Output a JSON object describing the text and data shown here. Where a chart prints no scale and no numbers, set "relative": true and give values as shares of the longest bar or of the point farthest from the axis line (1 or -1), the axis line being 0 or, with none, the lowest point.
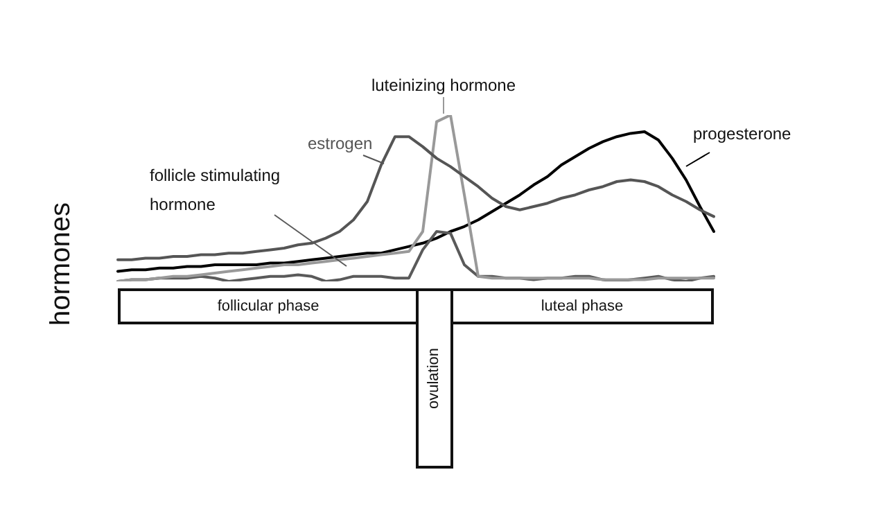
{
  "chart_data": {
    "type": "line",
    "relative": true,
    "ylabel": "hormones",
    "legend": false,
    "marker": "none",
    "categories": [
      null,
      null,
      null,
      null,
      null,
      null,
      null,
      null,
      null,
      null,
      null,
      null,
      null,
      null,
      null,
      null,
      null,
      null,
      null,
      null,
      null,
      null,
      null,
      null,
      null,
      null,
      null,
      null,
      null,
      null,
      null,
      null,
      null,
      null,
      null,
      null,
      null,
      null,
      null,
      null,
      null,
      null,
      null,
      null
    ],
    "series": [
      {
        "name": "estrogen",
        "color": "#555555",
        "values": [
          0.13,
          0.13,
          0.14,
          0.14,
          0.15,
          0.15,
          0.16,
          0.16,
          0.17,
          0.17,
          0.18,
          0.19,
          0.2,
          0.22,
          0.23,
          0.26,
          0.3,
          0.37,
          0.48,
          0.7,
          0.87,
          0.87,
          0.81,
          0.74,
          0.69,
          0.63,
          0.57,
          0.5,
          0.45,
          0.43,
          0.45,
          0.47,
          0.5,
          0.52,
          0.55,
          0.57,
          0.6,
          0.61,
          0.6,
          0.57,
          0.52,
          0.48,
          0.43,
          0.39
        ]
      },
      {
        "name": "luteinizing hormone",
        "color": "#999999",
        "values": [
          0,
          0.01,
          0.01,
          0.02,
          0.03,
          0.03,
          0.04,
          0.05,
          0.06,
          0.07,
          0.08,
          0.09,
          0.1,
          0.1,
          0.11,
          0.12,
          0.13,
          0.14,
          0.15,
          0.16,
          0.17,
          0.18,
          0.3,
          0.96,
          1,
          0.52,
          0.03,
          0.02,
          0.02,
          0.02,
          0.02,
          0.02,
          0.02,
          0.02,
          0.02,
          0.01,
          0.01,
          0.01,
          0.01,
          0.02,
          0.02,
          0.02,
          0.02,
          0.02
        ]
      },
      {
        "name": "follicle stimulating hormone",
        "color": "#5a5a5a",
        "values": [
          0,
          0.01,
          0.01,
          0.02,
          0.02,
          0.02,
          0.03,
          0.02,
          0,
          0.01,
          0.02,
          0.03,
          0.03,
          0.04,
          0.03,
          0,
          0.01,
          0.03,
          0.03,
          0.03,
          0.02,
          0.02,
          0.19,
          0.3,
          0.29,
          0.1,
          0.03,
          0.03,
          0.02,
          0.02,
          0.01,
          0.02,
          0.02,
          0.03,
          0.03,
          0.01,
          0,
          0.01,
          0.02,
          0.03,
          0.01,
          0,
          0.02,
          0.03
        ]
      },
      {
        "name": "progesterone",
        "color": "#000000",
        "values": [
          0.06,
          0.07,
          0.07,
          0.08,
          0.08,
          0.09,
          0.09,
          0.1,
          0.1,
          0.1,
          0.1,
          0.11,
          0.11,
          0.12,
          0.13,
          0.14,
          0.15,
          0.16,
          0.17,
          0.17,
          0.19,
          0.21,
          0.23,
          0.26,
          0.3,
          0.33,
          0.37,
          0.42,
          0.47,
          0.52,
          0.58,
          0.63,
          0.7,
          0.75,
          0.8,
          0.84,
          0.87,
          0.89,
          0.9,
          0.85,
          0.74,
          0.61,
          0.45,
          0.3
        ]
      }
    ],
    "annotations": [
      "follicular phase",
      "ovulation",
      "luteal phase"
    ]
  }
}
